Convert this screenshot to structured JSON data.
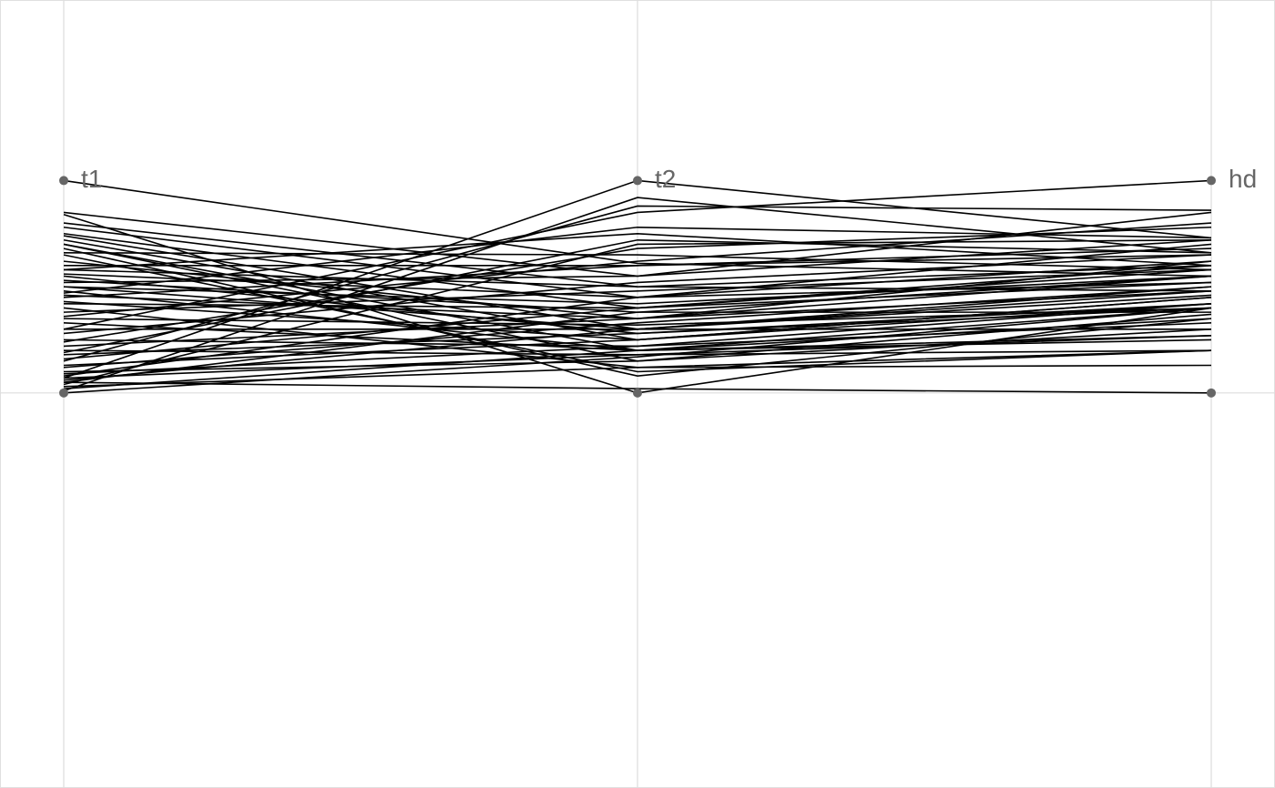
{
  "chart_data": {
    "type": "parallel",
    "categories": [
      "t1",
      "t2",
      "hd"
    ],
    "ylim": [
      -1.86,
      1.85
    ],
    "yticks": [
      0
    ],
    "grid": true,
    "color": "#000000",
    "point_color": "#666666",
    "values": [
      [
        1,
        0.61,
        0.55
      ],
      [
        0.07,
        1,
        0.73
      ],
      [
        0.3,
        0.85,
        1
      ],
      [
        0.84,
        0,
        0.4
      ],
      [
        0,
        0.17,
        0.4
      ],
      [
        0.05,
        0.02,
        0
      ],
      [
        0.85,
        0.55,
        0.85
      ],
      [
        0.8,
        0.5,
        0.6
      ],
      [
        0.78,
        0.45,
        0.7
      ],
      [
        0.75,
        0.4,
        0.58
      ],
      [
        0.74,
        0.3,
        0.5
      ],
      [
        0.72,
        0.25,
        0.45
      ],
      [
        0.7,
        0.2,
        0.4
      ],
      [
        0.7,
        0.15,
        0.37
      ],
      [
        0.68,
        0.08,
        0.35
      ],
      [
        0.65,
        0.1,
        0.2
      ],
      [
        0.62,
        0.35,
        0.62
      ],
      [
        0.6,
        0.6,
        0.65
      ],
      [
        0.58,
        0.5,
        0.48
      ],
      [
        0.56,
        0.45,
        0.52
      ],
      [
        0.55,
        0.28,
        0.42
      ],
      [
        0.53,
        0.38,
        0.38
      ],
      [
        0.52,
        0.55,
        0.72
      ],
      [
        0.5,
        0.42,
        0.55
      ],
      [
        0.5,
        0.3,
        0.3
      ],
      [
        0.48,
        0.2,
        0.27
      ],
      [
        0.46,
        0.35,
        0.48
      ],
      [
        0.45,
        0.6,
        0.68
      ],
      [
        0.43,
        0.25,
        0.45
      ],
      [
        0.42,
        0.4,
        0.6
      ],
      [
        0.4,
        0.12,
        0.2
      ],
      [
        0.38,
        0.48,
        0.58
      ],
      [
        0.35,
        0.32,
        0.4
      ],
      [
        0.33,
        0.2,
        0.25
      ],
      [
        0.3,
        0.3,
        0.48
      ],
      [
        0.28,
        0.52,
        0.65
      ],
      [
        0.25,
        0.22,
        0.33
      ],
      [
        0.22,
        0.35,
        0.55
      ],
      [
        0.2,
        0.18,
        0.27
      ],
      [
        0.18,
        0.28,
        0.4
      ],
      [
        0.16,
        0.4,
        0.52
      ],
      [
        0.15,
        0.88,
        0.86
      ],
      [
        0.13,
        0.25,
        0.42
      ],
      [
        0.12,
        0.33,
        0.5
      ],
      [
        0.1,
        0.15,
        0.3
      ],
      [
        0.09,
        0.22,
        0.42
      ],
      [
        0.08,
        0.45,
        0.62
      ],
      [
        0.07,
        0.18,
        0.2
      ],
      [
        0.06,
        0.3,
        0.46
      ],
      [
        0.05,
        0.38,
        0.55
      ],
      [
        0.04,
        0.7,
        0.72
      ],
      [
        0.03,
        0.12,
        0.13
      ],
      [
        0.02,
        0.2,
        0.35
      ],
      [
        0.01,
        0.92,
        0.66
      ],
      [
        0.58,
        0.75,
        0.6
      ],
      [
        0.66,
        0.65,
        0.58
      ],
      [
        0.47,
        0.78,
        0.73
      ],
      [
        0.36,
        0.62,
        0.8
      ],
      [
        0.24,
        0.68,
        0.78
      ],
      [
        0.19,
        0.72,
        0.66
      ]
    ]
  }
}
